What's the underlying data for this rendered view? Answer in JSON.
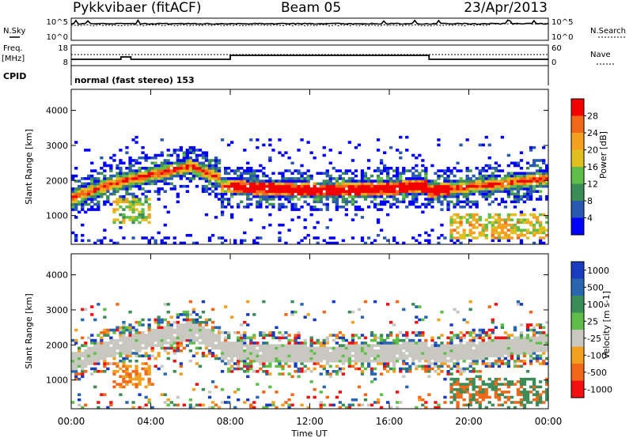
{
  "header": {
    "title_left": "Pykkvibaer (fitACF)",
    "title_mid": "Beam 05",
    "title_right": "23/Apr/2013"
  },
  "sky_panel": {
    "left_label": "N.Sky",
    "right_label": "N.Search",
    "left_ticks": [
      "10^5",
      "10^0"
    ],
    "right_ticks": [
      "10^5",
      "10^0"
    ]
  },
  "freq_panel": {
    "left_label_1": "Freq.",
    "left_label_2": "[MHz]",
    "right_label": "Nave",
    "left_ticks": [
      "18",
      "8"
    ],
    "right_ticks": [
      "60",
      "0"
    ]
  },
  "cpid_panel": {
    "label": "CPID",
    "text": "normal (fast stereo) 153"
  },
  "chart_data": [
    {
      "type": "heatmap",
      "name": "power",
      "ylabel": "Slant Range [km]",
      "yticks": [
        "1000",
        "2000",
        "3000",
        "4000"
      ],
      "ylim": [
        180,
        4600
      ],
      "colorbar_label": "Power [dB]",
      "colorbar_ticks": [
        "4",
        "8",
        "12",
        "16",
        "20",
        "24",
        "28"
      ],
      "colors": [
        "#0000ff",
        "#2a58b0",
        "#3c8c58",
        "#5fbe4a",
        "#e0c020",
        "#f4a020",
        "#f26818",
        "#f20000"
      ]
    },
    {
      "type": "heatmap",
      "name": "velocity",
      "ylabel": "Slant Range [km]",
      "yticks": [
        "1000",
        "2000",
        "3000",
        "4000"
      ],
      "ylim": [
        180,
        4600
      ],
      "colorbar_label": "Velocity [m s-1]",
      "colorbar_ticks": [
        "1000",
        "500",
        "100",
        "25",
        "-25",
        "-100",
        "-500",
        "-1000"
      ],
      "colors": [
        "#1a3cbe",
        "#2a66b0",
        "#3c8c58",
        "#5fbe4a",
        "#c8c8c0",
        "#f2a020",
        "#f26818",
        "#f21010"
      ]
    }
  ],
  "xaxis": {
    "label": "Time UT",
    "ticks": [
      "00:00",
      "04:00",
      "08:00",
      "12:00",
      "16:00",
      "20:00",
      "00:00"
    ]
  }
}
